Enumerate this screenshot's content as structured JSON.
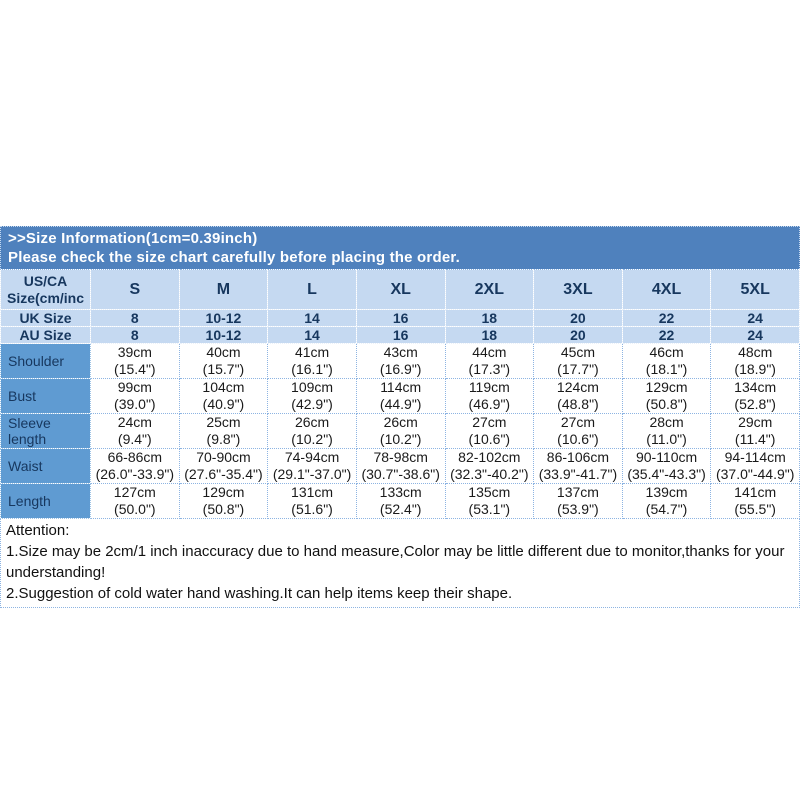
{
  "banner": {
    "line1": ">>Size Information(1cm=0.39inch)",
    "line2": "Please check the size chart carefully before placing the order."
  },
  "size_table": {
    "corner_label": "US/CA\nSize(cm/inc",
    "size_headers": [
      "S",
      "M",
      "L",
      "XL",
      "2XL",
      "3XL",
      "4XL",
      "5XL"
    ],
    "rows": [
      {
        "label": "UK Size",
        "type": "size",
        "values": [
          "8",
          "10-12",
          "14",
          "16",
          "18",
          "20",
          "22",
          "24"
        ]
      },
      {
        "label": "AU Size",
        "type": "size",
        "values": [
          "8",
          "10-12",
          "14",
          "16",
          "18",
          "20",
          "22",
          "24"
        ]
      },
      {
        "label": "Shoulder",
        "type": "measure",
        "values": [
          "39cm\n(15.4\")",
          "40cm\n(15.7\")",
          "41cm\n(16.1\")",
          "43cm\n(16.9\")",
          "44cm\n(17.3\")",
          "45cm\n(17.7\")",
          "46cm\n(18.1\")",
          "48cm\n(18.9\")"
        ]
      },
      {
        "label": "Bust",
        "type": "measure",
        "values": [
          "99cm\n(39.0\")",
          "104cm\n(40.9\")",
          "109cm\n(42.9\")",
          "114cm\n(44.9\")",
          "119cm\n(46.9\")",
          "124cm\n(48.8\")",
          "129cm\n(50.8\")",
          "134cm\n(52.8\")"
        ]
      },
      {
        "label": "Sleeve length",
        "type": "measure",
        "values": [
          "24cm\n(9.4\")",
          "25cm\n(9.8\")",
          "26cm\n(10.2\")",
          "26cm\n(10.2\")",
          "27cm\n(10.6\")",
          "27cm\n(10.6\")",
          "28cm\n(11.0\")",
          "29cm\n(11.4\")"
        ]
      },
      {
        "label": "Waist",
        "type": "measure",
        "values": [
          "66-86cm\n(26.0\"-33.9\")",
          "70-90cm\n(27.6\"-35.4\")",
          "74-94cm\n(29.1\"-37.0\")",
          "78-98cm\n(30.7\"-38.6\")",
          "82-102cm\n(32.3\"-40.2\")",
          "86-106cm\n(33.9\"-41.7\")",
          "90-110cm\n(35.4\"-43.3\")",
          "94-114cm\n(37.0\"-44.9\")"
        ]
      },
      {
        "label": "Length",
        "type": "measure",
        "values": [
          "127cm\n(50.0\")",
          "129cm\n(50.8\")",
          "131cm\n(51.6\")",
          "133cm\n(52.4\")",
          "135cm\n(53.1\")",
          "137cm\n(53.9\")",
          "139cm\n(54.7\")",
          "141cm\n(55.5\")"
        ]
      }
    ]
  },
  "attention": {
    "title": "Attention:",
    "note1": "1.Size may be 2cm/1 inch inaccuracy due to hand measure,Color may be little different due to monitor,thanks for your understanding!",
    "note2": "2.Suggestion of cold water hand washing.It can help items keep their shape."
  },
  "colors": {
    "banner_bg": "#4f81bd",
    "banner_text": "#ffffff",
    "header_cell_bg": "#c5d9f1",
    "label_cell_bg": "#5f9bd2",
    "header_text": "#17375e",
    "body_text": "#1a1a1a",
    "grid_border": "#8db4e2"
  }
}
